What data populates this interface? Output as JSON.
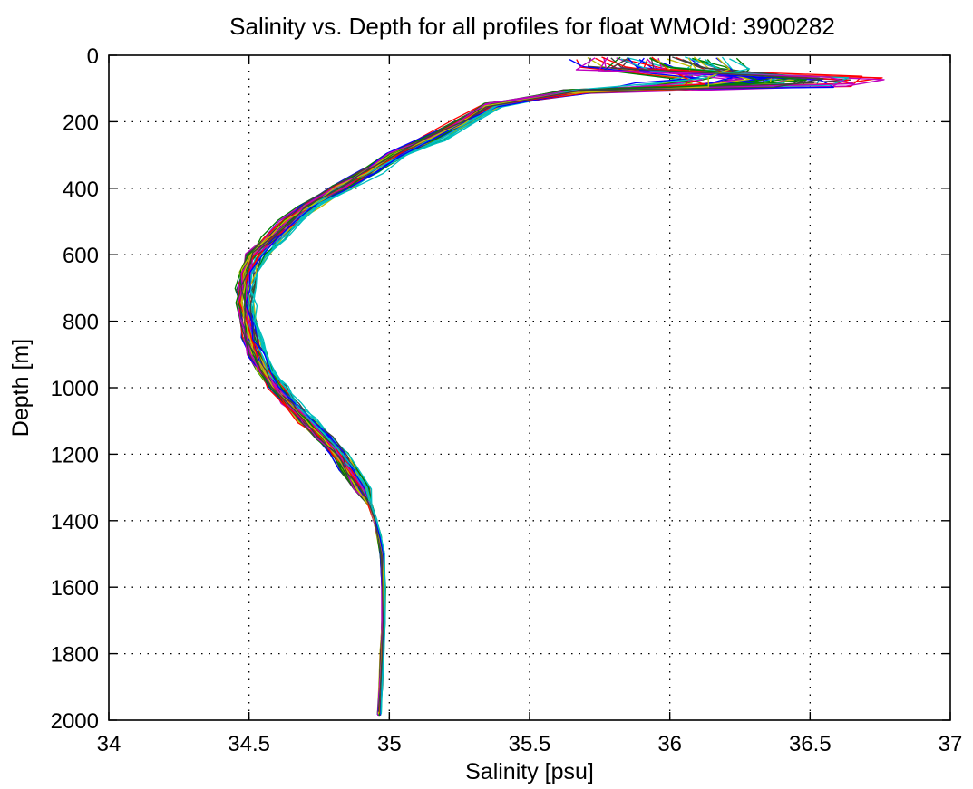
{
  "chart_data": {
    "type": "line",
    "title": "Salinity vs. Depth for all profiles for float WMOId: 3900282",
    "xlabel": "Salinity [psu]",
    "ylabel": "Depth [m]",
    "xlim": [
      34,
      37
    ],
    "ylim": [
      0,
      2000
    ],
    "y_reversed": true,
    "grid": true,
    "legend": "none",
    "x_ticks": [
      "34",
      "34.5",
      "35",
      "35.5",
      "36",
      "36.5",
      "37"
    ],
    "y_ticks": [
      "0",
      "200",
      "400",
      "600",
      "800",
      "1000",
      "1200",
      "1400",
      "1600",
      "1800",
      "2000"
    ],
    "colors": [
      "#0000ff",
      "#008000",
      "#ff0000",
      "#00bfbf",
      "#bf00bf",
      "#bfbf00",
      "#404040"
    ],
    "profile_count": 49,
    "representative_profile": {
      "depth": [
        5,
        40,
        70,
        90,
        110,
        150,
        200,
        250,
        300,
        350,
        400,
        450,
        500,
        550,
        600,
        650,
        700,
        750,
        800,
        850,
        900,
        950,
        1000,
        1050,
        1100,
        1150,
        1200,
        1250,
        1300,
        1350,
        1400,
        1450,
        1500,
        1600,
        1700,
        1800,
        1900,
        1980
      ],
      "salinity": [
        35.92,
        35.98,
        36.12,
        36.03,
        35.66,
        35.37,
        35.27,
        35.16,
        35.03,
        34.93,
        34.83,
        34.72,
        34.65,
        34.59,
        34.53,
        34.5,
        34.49,
        34.49,
        34.5,
        34.51,
        34.53,
        34.56,
        34.6,
        34.65,
        34.71,
        34.77,
        34.82,
        34.86,
        34.9,
        34.93,
        34.95,
        34.965,
        34.975,
        34.98,
        34.98,
        34.975,
        34.97,
        34.965
      ]
    }
  }
}
